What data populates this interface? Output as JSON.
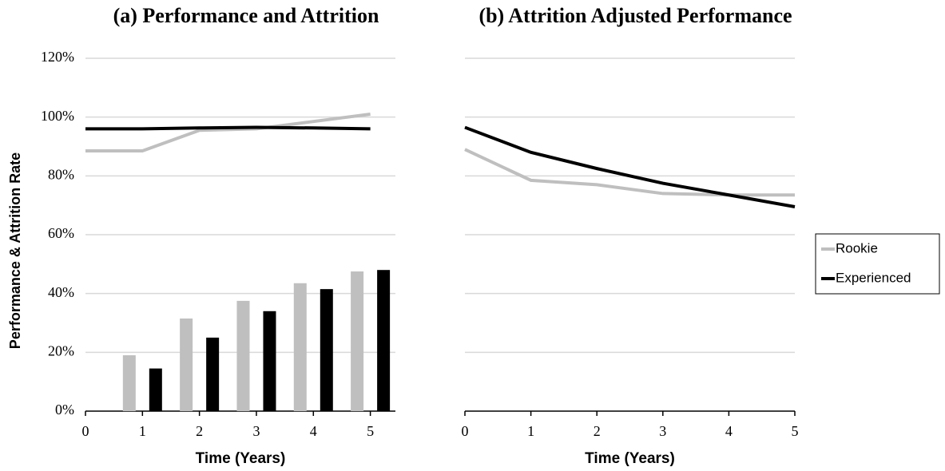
{
  "chart_data": [
    {
      "type": "combo",
      "title": "(a) Performance and Attrition",
      "x_label": "Time (Years)",
      "y_label": "Performance & Attrition Rate",
      "x": [
        0,
        1,
        2,
        3,
        4,
        5
      ],
      "xlim": [
        0,
        5.44
      ],
      "xticks": [
        0,
        1,
        2,
        3,
        4,
        5
      ],
      "ylim": [
        0,
        120
      ],
      "yticks": [
        {
          "value": 0,
          "label": "0%"
        },
        {
          "value": 20,
          "label": "20%"
        },
        {
          "value": 40,
          "label": "40%"
        },
        {
          "value": 60,
          "label": "60%"
        },
        {
          "value": 80,
          "label": "80%"
        },
        {
          "value": 100,
          "label": "100%"
        },
        {
          "value": 120,
          "label": "120%"
        }
      ],
      "grid": true,
      "series": [
        {
          "kind": "line",
          "color": "#bfbfbf",
          "values": [
            88.5,
            88.5,
            95.5,
            96,
            98.5,
            101
          ]
        },
        {
          "kind": "line",
          "color": "#000000",
          "values": [
            96,
            96,
            96.3,
            96.5,
            96.3,
            96
          ]
        },
        {
          "kind": "bar",
          "color": "#bfbfbf",
          "x": [
            1,
            2,
            3,
            4,
            5
          ],
          "values": [
            19,
            31.5,
            37.5,
            43.5,
            47.5
          ]
        },
        {
          "kind": "bar",
          "color": "#000000",
          "x": [
            1,
            2,
            3,
            4,
            5
          ],
          "values": [
            14.5,
            25,
            34,
            41.5,
            48
          ]
        }
      ]
    },
    {
      "type": "line",
      "title": "(b) Attrition Adjusted Performance",
      "x_label": "Time (Years)",
      "x": [
        0,
        1,
        2,
        3,
        4,
        5
      ],
      "xlim": [
        0,
        5
      ],
      "xticks": [
        0,
        1,
        2,
        3,
        4,
        5
      ],
      "ylim": [
        0,
        120
      ],
      "yticks": [
        0,
        20,
        40,
        60,
        80,
        100,
        120
      ],
      "y_tick_labels": false,
      "grid": true,
      "legend": "right",
      "series": [
        {
          "name": "Rookie",
          "color": "#bfbfbf",
          "values": [
            89,
            78.5,
            77,
            74,
            73.5,
            73.5
          ]
        },
        {
          "name": "Experienced",
          "color": "#000000",
          "values": [
            96.5,
            88,
            82.5,
            77.5,
            73.5,
            69.5
          ]
        }
      ]
    }
  ]
}
